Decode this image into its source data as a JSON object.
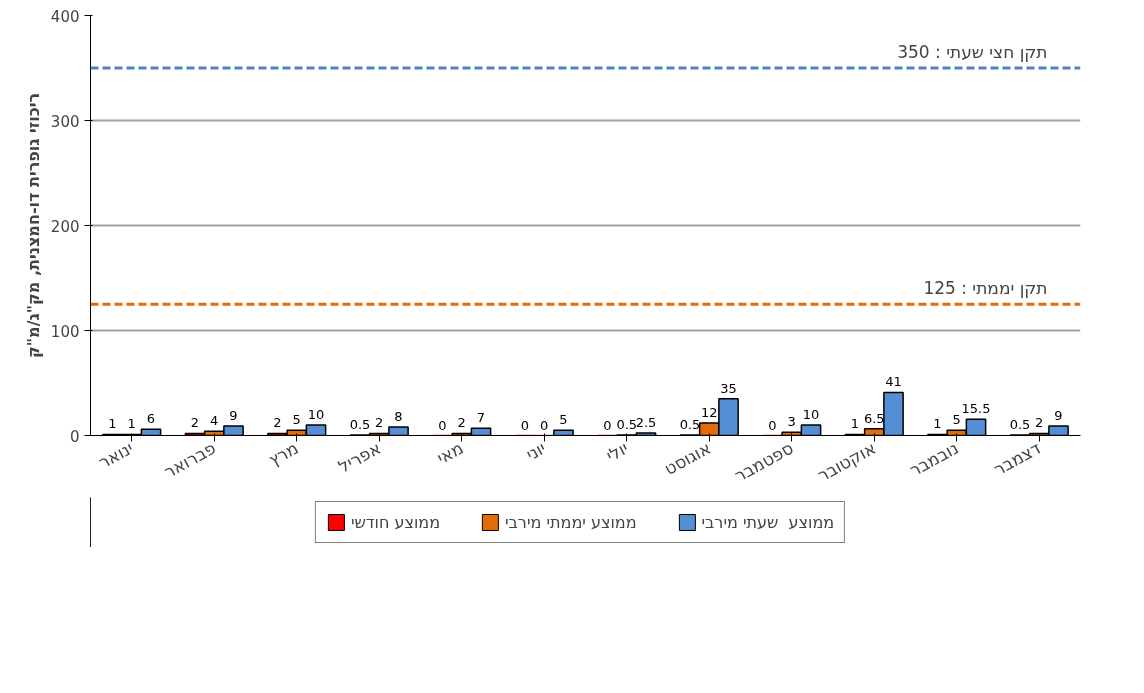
{
  "chart_data": {
    "type": "bar",
    "ylabel": "ריכוזי גופרית דו-חמצנית, מק\"ג/מ\"ק",
    "categories": [
      "ינואר",
      "פברואר",
      "מרץ",
      "אפריל",
      "מאי",
      "יוני",
      "יולי",
      "אוגוסט",
      "ספטמבר",
      "אוקטובר",
      "נובמבר",
      "דצמבר"
    ],
    "series": [
      {
        "name": "ממוצע חודשי",
        "color": "#ff0000",
        "values": [
          1,
          2,
          2,
          0.5,
          0,
          0,
          0,
          0.5,
          0,
          1,
          1,
          0.5
        ]
      },
      {
        "name": "ממוצע יממתי מירבי",
        "color": "#e36c09",
        "values": [
          1,
          4,
          5,
          2,
          2,
          0,
          0.5,
          12,
          3,
          6.5,
          5,
          2
        ]
      },
      {
        "name": "ממוצע  שעתי מירבי",
        "color": "#558ed5",
        "values": [
          6,
          9,
          10,
          8,
          7,
          5,
          2.5,
          35,
          10,
          41,
          15.5,
          9
        ]
      }
    ],
    "ylim": [
      0,
      400
    ],
    "yticks": [
      0,
      100,
      200,
      300,
      400
    ],
    "ref_lines": [
      {
        "axis": "y",
        "value": 350,
        "label": "תקן חצי שעתי : 350",
        "color": "#4f81bd",
        "line_style": "dashed"
      },
      {
        "axis": "y",
        "value": 125,
        "label": "תקן יממתי : 125",
        "color": "#e36c09",
        "line_style": "dashed"
      }
    ],
    "grid": "y",
    "legend": "bottom",
    "data_labels": true
  }
}
